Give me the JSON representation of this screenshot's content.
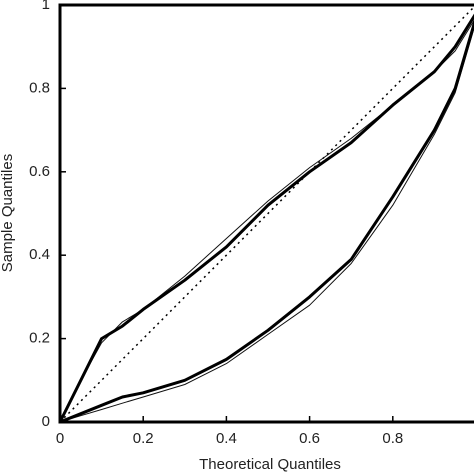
{
  "chart_data": {
    "type": "line",
    "x_label": "Theoretical Quantiles",
    "y_label": "Sample Quantiles",
    "x": [
      0,
      0.05,
      0.1,
      0.15,
      0.2,
      0.3,
      0.4,
      0.5,
      0.6,
      0.7,
      0.8,
      0.9,
      0.95,
      1
    ],
    "series": [
      {
        "color": "#000000",
        "width": 1.5,
        "dash": "2,4",
        "values": [
          0,
          0.05,
          0.1,
          0.15,
          0.2,
          0.3,
          0.4,
          0.5,
          0.6,
          0.7,
          0.8,
          0.9,
          0.95,
          1
        ]
      },
      {
        "color": "#111111",
        "width": 1,
        "values": [
          0,
          0.1,
          0.19,
          0.24,
          0.27,
          0.35,
          0.44,
          0.53,
          0.61,
          0.68,
          0.76,
          0.84,
          0.89,
          0.97
        ]
      },
      {
        "color": "#000000",
        "width": 3,
        "values": [
          0,
          0.1,
          0.2,
          0.23,
          0.27,
          0.34,
          0.42,
          0.52,
          0.6,
          0.67,
          0.76,
          0.84,
          0.9,
          0.98
        ]
      },
      {
        "color": "#111111",
        "width": 1,
        "values": [
          0,
          0.015,
          0.03,
          0.045,
          0.06,
          0.09,
          0.14,
          0.21,
          0.28,
          0.38,
          0.52,
          0.69,
          0.79,
          0.96
        ]
      },
      {
        "color": "#000000",
        "width": 3,
        "values": [
          0,
          0.02,
          0.04,
          0.06,
          0.07,
          0.1,
          0.15,
          0.22,
          0.3,
          0.39,
          0.54,
          0.7,
          0.8,
          0.97
        ]
      }
    ],
    "xlim": [
      0,
      1
    ],
    "ylim": [
      0,
      1
    ],
    "xticks": [
      0,
      0.2,
      0.4,
      0.6,
      0.8
    ],
    "yticks": [
      0,
      0.2,
      0.4,
      0.6,
      0.8,
      1
    ],
    "grid": false
  }
}
